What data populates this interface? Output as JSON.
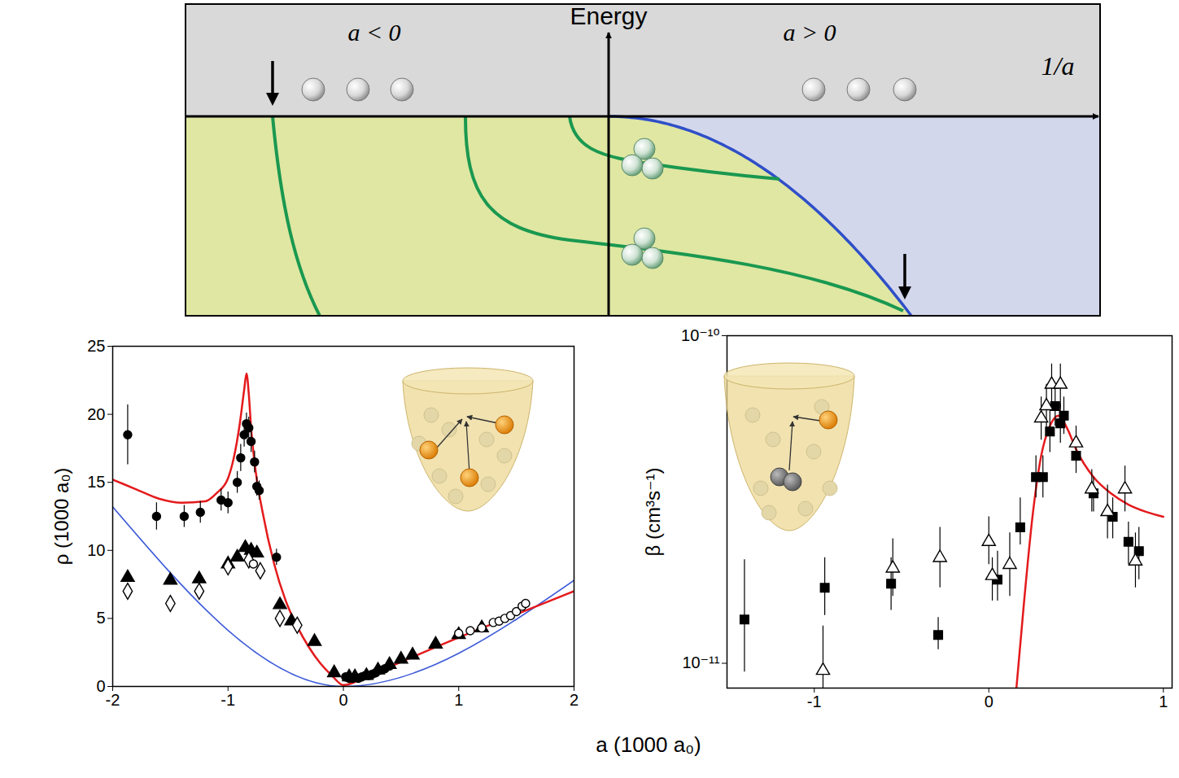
{
  "diagram": {
    "left_label": "a < 0",
    "vertical_axis_label": "Energy",
    "right_label": "a > 0",
    "horizontal_axis_label": "1/a"
  },
  "shared_x_label": "a (1000 a₀)",
  "chart_data": [
    {
      "type": "scatter",
      "y_label": "ρ (1000 a₀)",
      "xlim": [
        -2,
        2
      ],
      "xticks": [
        -2,
        -1,
        0,
        1,
        2
      ],
      "ylim": [
        0,
        25
      ],
      "yticks": [
        0,
        5,
        10,
        15,
        20,
        25
      ],
      "series": [
        {
          "type": "line",
          "color": "#3d5bd9",
          "x": [
            -2,
            0,
            2
          ],
          "values": [
            13.2,
            0,
            7.8
          ]
        },
        {
          "type": "line",
          "color": "#e41a1c",
          "x": [
            -2,
            -1.8,
            -1.6,
            -1.4,
            -1.2,
            -1.1,
            -1.0,
            -0.95,
            -0.9,
            -0.86,
            -0.84,
            -0.82,
            -0.8,
            -0.76,
            -0.7,
            -0.6,
            -0.5,
            -0.4,
            -0.3,
            -0.2,
            -0.1,
            0,
            0.2,
            0.5,
            1.0,
            1.5,
            2.0
          ],
          "values": [
            15.2,
            14.5,
            13.8,
            13.5,
            13.6,
            14.2,
            15.3,
            16.8,
            19.2,
            21.8,
            23.0,
            21.5,
            19.0,
            15.8,
            12.8,
            9.0,
            6.3,
            4.4,
            2.9,
            1.7,
            0.8,
            0.1,
            0.7,
            1.8,
            3.6,
            5.3,
            7.0
          ]
        },
        {
          "type": "scatter",
          "marker": "filled_circle",
          "color": "#000000",
          "x": [
            -1.87,
            -1.62,
            -1.38,
            -1.24,
            -1.06,
            -1.0,
            -0.92,
            -0.89,
            -0.86,
            -0.84,
            -0.82,
            -0.8,
            -0.77,
            -0.75,
            -0.73,
            -0.58,
            0.02,
            0.05,
            0.08,
            0.1,
            0.13,
            0.16,
            0.19,
            0.22,
            0.25,
            0.28,
            0.32,
            0.36,
            0.4
          ],
          "values": [
            18.5,
            12.5,
            12.5,
            12.8,
            13.7,
            13.5,
            15.0,
            16.8,
            18.5,
            19.3,
            19.0,
            18.0,
            16.5,
            14.7,
            14.4,
            9.5,
            0.7,
            0.6,
            0.6,
            0.7,
            0.6,
            0.7,
            0.8,
            0.8,
            0.9,
            1.0,
            1.2,
            1.3,
            1.5
          ],
          "errors": [
            2.2,
            1.0,
            0.8,
            0.8,
            0.8,
            0.8,
            0.8,
            1.0,
            0.9,
            0.8,
            0.8,
            0.8,
            0.8,
            0.7,
            0.7,
            0.6,
            null,
            null,
            null,
            null,
            null,
            null,
            null,
            null,
            null,
            null,
            null,
            null,
            null
          ]
        },
        {
          "type": "scatter",
          "marker": "filled_triangle",
          "color": "#000000",
          "x": [
            -1.87,
            -1.5,
            -1.25,
            -1.0,
            -0.92,
            -0.85,
            -0.8,
            -0.75,
            -0.55,
            -0.45,
            -0.25,
            -0.08,
            0.05,
            0.1,
            0.2,
            0.3,
            0.4,
            0.5,
            0.6,
            0.8,
            1.0,
            1.2
          ],
          "values": [
            8.0,
            7.8,
            7.9,
            9.0,
            9.5,
            10.2,
            10.0,
            9.8,
            6.0,
            4.8,
            3.3,
            1.0,
            0.7,
            0.7,
            0.8,
            1.2,
            1.6,
            2.0,
            2.3,
            3.1,
            3.8,
            4.3
          ]
        },
        {
          "type": "scatter",
          "marker": "open_diamond",
          "color": "#000000",
          "x": [
            -1.87,
            -1.5,
            -1.25,
            -1.0,
            -0.82,
            -0.72,
            -0.55,
            -0.4
          ],
          "values": [
            7.0,
            6.1,
            7.0,
            8.8,
            9.3,
            8.5,
            5.0,
            4.5
          ]
        },
        {
          "type": "scatter",
          "marker": "open_circle",
          "color": "#000000",
          "x": [
            -0.78,
            1.0,
            1.1,
            1.2,
            1.3,
            1.35,
            1.4,
            1.45,
            1.5,
            1.55,
            1.58
          ],
          "values": [
            9.0,
            3.9,
            4.1,
            4.3,
            4.7,
            4.8,
            5.0,
            5.2,
            5.5,
            5.9,
            6.1
          ]
        }
      ]
    },
    {
      "type": "scatter",
      "y_label": "β (cm³s⁻¹)",
      "log": "y",
      "xlim": [
        -1.5,
        1.05
      ],
      "xticks": [
        -1,
        0,
        1
      ],
      "ylim": [
        8.4e-12,
        1e-10
      ],
      "yticks": [
        {
          "value": 1e-11,
          "label": "10⁻¹¹"
        },
        {
          "value": 1e-10,
          "label": "10⁻¹⁰"
        }
      ],
      "series": [
        {
          "type": "line",
          "color": "#e41a1c",
          "x": [
            0.15,
            0.2,
            0.25,
            0.3,
            0.35,
            0.4,
            0.45,
            0.5,
            0.6,
            0.7,
            0.8,
            0.9,
            1.0
          ],
          "values": [
            7.5e-12,
            1.5e-11,
            2.8e-11,
            4.3e-11,
            5.3e-11,
            5.7e-11,
            5.2e-11,
            4.5e-11,
            3.7e-11,
            3.3e-11,
            3.05e-11,
            2.9e-11,
            2.8e-11
          ]
        },
        {
          "type": "scatter",
          "marker": "filled_square",
          "color": "#000000",
          "x": [
            -1.4,
            -0.94,
            -0.56,
            -0.29,
            0.05,
            0.18,
            0.27,
            0.31,
            0.35,
            0.38,
            0.41,
            0.43,
            0.5,
            0.6,
            0.71,
            0.8,
            0.86
          ],
          "values": [
            1.36e-11,
            1.7e-11,
            1.75e-11,
            1.22e-11,
            1.8e-11,
            2.6e-11,
            3.7e-11,
            3.7e-11,
            5.1e-11,
            6.1e-11,
            5.4e-11,
            5.7e-11,
            4.3e-11,
            3.3e-11,
            2.8e-11,
            2.35e-11,
            2.2e-11
          ],
          "error_low": [
            9.4e-12,
            1.4e-11,
            1.45e-11,
            1.1e-11,
            1.55e-11,
            2.3e-11,
            3.2e-11,
            3.2e-11,
            4.4e-11,
            5.3e-11,
            4.7e-11,
            5e-11,
            3.8e-11,
            2.9e-11,
            2.4e-11,
            2e-11,
            1.8e-11
          ],
          "error_high": [
            2.07e-11,
            2.1e-11,
            2.1e-11,
            1.38e-11,
            2.2e-11,
            3.2e-11,
            4.3e-11,
            4.3e-11,
            5.9e-11,
            7e-11,
            6.2e-11,
            6.5e-11,
            4.9e-11,
            3.7e-11,
            3.2e-11,
            2.7e-11,
            2.6e-11
          ]
        },
        {
          "type": "scatter",
          "marker": "open_triangle",
          "color": "#000000",
          "x": [
            -0.95,
            -0.55,
            -0.28,
            0.0,
            0.02,
            0.12,
            0.3,
            0.33,
            0.36,
            0.41,
            0.5,
            0.59,
            0.68,
            0.78,
            0.84
          ],
          "values": [
            9.5e-12,
            1.95e-11,
            2.1e-11,
            2.35e-11,
            1.85e-11,
            2e-11,
            5.6e-11,
            6.1e-11,
            7.1e-11,
            7.1e-11,
            4.7e-11,
            3.4e-11,
            2.9e-11,
            3.4e-11,
            2.05e-11
          ],
          "error_low": [
            7.5e-12,
            1.6e-11,
            1.7e-11,
            2e-11,
            1.55e-11,
            1.6e-11,
            4.8e-11,
            5.2e-11,
            6e-11,
            6e-11,
            4.1e-11,
            2.9e-11,
            2.4e-11,
            2.9e-11,
            1.7e-11
          ],
          "error_high": [
            1.3e-11,
            2.4e-11,
            2.6e-11,
            2.8e-11,
            2.1e-11,
            2.5e-11,
            6.5e-11,
            7.1e-11,
            8.2e-11,
            8.2e-11,
            5.3e-11,
            3.9e-11,
            3.5e-11,
            4e-11,
            2.5e-11
          ]
        }
      ]
    }
  ]
}
